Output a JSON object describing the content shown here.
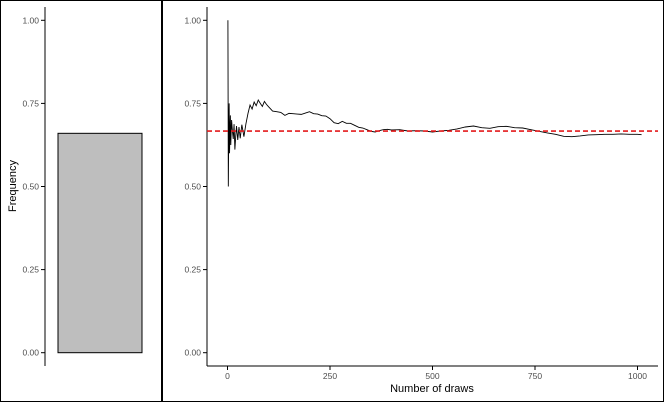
{
  "colors": {
    "bar_fill": "#bebebe",
    "line": "#000000",
    "reference_line": "#e41a1c",
    "axis": "#000000",
    "tick_text": "#4d4d4d"
  },
  "chart_data": [
    {
      "type": "bar",
      "title": "",
      "xlabel": "",
      "ylabel": "Frequency",
      "categories": [
        ""
      ],
      "values": [
        0.66
      ],
      "ylim": [
        -0.04,
        1.04
      ],
      "yticks": [
        0.0,
        0.25,
        0.5,
        0.75,
        1.0
      ],
      "ytick_labels": [
        "0.00",
        "0.25",
        "0.50",
        "0.75",
        "1.00"
      ],
      "grid": false
    },
    {
      "type": "line",
      "title": "",
      "xlabel": "Number of draws",
      "ylabel": "",
      "xlim": [
        -50,
        1050
      ],
      "ylim": [
        -0.04,
        1.04
      ],
      "xticks": [
        0,
        250,
        500,
        750,
        1000
      ],
      "xtick_labels": [
        "0",
        "250",
        "500",
        "750",
        "1000"
      ],
      "yticks": [
        0.0,
        0.25,
        0.5,
        0.75,
        1.0
      ],
      "ytick_labels": [
        "0.00",
        "0.25",
        "0.50",
        "0.75",
        "1.00"
      ],
      "grid": false,
      "reference_line": {
        "y": 0.6667,
        "style": "dashed"
      },
      "series": [
        {
          "x": [
            1,
            2,
            3,
            4,
            5,
            6,
            7,
            8,
            9,
            10,
            12,
            14,
            16,
            18,
            20,
            22,
            25,
            28,
            31,
            35,
            40,
            45,
            50,
            55,
            60,
            65,
            70,
            75,
            80,
            85,
            90,
            95,
            100,
            110,
            120,
            130,
            140,
            150,
            160,
            170,
            180,
            190,
            200,
            210,
            220,
            230,
            240,
            250,
            260,
            270,
            280,
            290,
            300,
            310,
            320,
            330,
            340,
            350,
            360,
            370,
            380,
            390,
            400,
            420,
            440,
            460,
            480,
            500,
            520,
            540,
            560,
            580,
            600,
            620,
            640,
            660,
            680,
            700,
            720,
            740,
            760,
            780,
            800,
            820,
            840,
            860,
            880,
            900,
            920,
            940,
            960,
            980,
            1000,
            1010
          ],
          "y": [
            1.0,
            0.5,
            0.667,
            0.75,
            0.6,
            0.667,
            0.714,
            0.625,
            0.667,
            0.7,
            0.667,
            0.643,
            0.6875,
            0.611,
            0.65,
            0.682,
            0.64,
            0.679,
            0.645,
            0.686,
            0.65,
            0.689,
            0.72,
            0.745,
            0.733,
            0.754,
            0.743,
            0.76,
            0.75,
            0.741,
            0.756,
            0.747,
            0.74,
            0.727,
            0.725,
            0.723,
            0.714,
            0.72,
            0.719,
            0.718,
            0.717,
            0.721,
            0.725,
            0.719,
            0.718,
            0.713,
            0.712,
            0.704,
            0.692,
            0.689,
            0.696,
            0.69,
            0.69,
            0.684,
            0.678,
            0.676,
            0.671,
            0.666,
            0.664,
            0.668,
            0.671,
            0.672,
            0.67,
            0.671,
            0.667,
            0.668,
            0.667,
            0.664,
            0.667,
            0.669,
            0.673,
            0.679,
            0.682,
            0.677,
            0.675,
            0.68,
            0.681,
            0.677,
            0.676,
            0.671,
            0.666,
            0.661,
            0.657,
            0.651,
            0.65,
            0.652,
            0.655,
            0.656,
            0.657,
            0.657,
            0.658,
            0.657,
            0.657,
            0.656
          ]
        }
      ]
    }
  ]
}
